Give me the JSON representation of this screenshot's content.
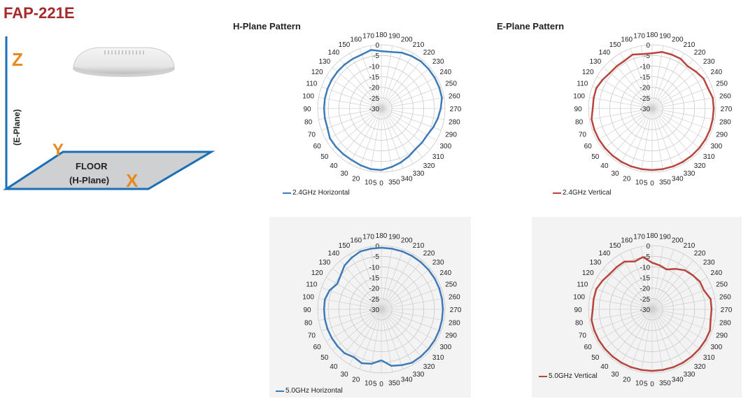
{
  "title": "FAP-221E",
  "diagram": {
    "axis_z": "Z",
    "axis_y": "Y",
    "axis_x": "X",
    "eplane_label": "(E-Plane)",
    "floor_label": "FLOOR",
    "hplane_label": "(H-Plane)"
  },
  "headings": {
    "h_plane": "H-Plane Pattern",
    "e_plane": "E-Plane Pattern"
  },
  "chart_data": [
    {
      "type": "polar-line",
      "angle_labels": [
        "0",
        "5",
        "10",
        "20",
        "30",
        "40",
        "50",
        "60",
        "70",
        "80",
        "90",
        "100",
        "110",
        "120",
        "130",
        "140",
        "150",
        "160",
        "170",
        "180",
        "190",
        "200",
        "210",
        "220",
        "230",
        "240",
        "250",
        "260",
        "270",
        "280",
        "290",
        "300",
        "310",
        "320",
        "330",
        "340",
        "350"
      ],
      "radial_labels": [
        "0",
        "-5",
        "-10",
        "-15",
        "-20",
        "-25",
        "-30"
      ],
      "rlim": [
        -30,
        0
      ],
      "series": [
        {
          "name": "2.4GHz Horizontal",
          "color": "#3d7ab8",
          "angles": [
            0,
            10,
            20,
            30,
            40,
            50,
            60,
            70,
            80,
            90,
            100,
            110,
            120,
            130,
            140,
            150,
            160,
            170,
            180,
            190,
            200,
            210,
            220,
            230,
            240,
            250,
            260,
            270,
            280,
            290,
            300,
            310,
            320,
            330,
            340,
            350
          ],
          "values": [
            -1,
            -1,
            -1.5,
            -2,
            -2,
            -2,
            -2,
            -3,
            -3,
            -3,
            -3,
            -3,
            -3,
            -3,
            -3,
            -3,
            -3,
            -2,
            -3,
            -3,
            -2,
            -1.5,
            -1,
            -1,
            -1,
            -1,
            -1,
            -2,
            -3,
            -4,
            -5,
            -5,
            -5,
            -4,
            -3,
            -2
          ]
        }
      ]
    },
    {
      "type": "polar-line",
      "angle_labels": [
        "0",
        "5",
        "10",
        "20",
        "30",
        "40",
        "50",
        "60",
        "70",
        "80",
        "90",
        "100",
        "110",
        "120",
        "130",
        "140",
        "150",
        "160",
        "170",
        "180",
        "190",
        "200",
        "210",
        "220",
        "230",
        "240",
        "250",
        "260",
        "270",
        "280",
        "290",
        "300",
        "310",
        "320",
        "330",
        "340",
        "350"
      ],
      "radial_labels": [
        "0",
        "-5",
        "-10",
        "-15",
        "-20",
        "-25",
        "-30"
      ],
      "rlim": [
        -30,
        0
      ],
      "series": [
        {
          "name": "2.4GHz Vertical",
          "color": "#b7443d",
          "angles": [
            0,
            10,
            20,
            30,
            40,
            50,
            60,
            70,
            80,
            90,
            100,
            110,
            120,
            130,
            140,
            150,
            160,
            170,
            180,
            190,
            200,
            210,
            220,
            230,
            240,
            250,
            260,
            270,
            280,
            290,
            300,
            310,
            320,
            330,
            340,
            350
          ],
          "values": [
            -1,
            -1,
            -1,
            -1,
            -1,
            -1,
            -1,
            -1,
            -1,
            -2,
            -2,
            -2,
            -3,
            -4,
            -4,
            -4,
            -3,
            -4,
            -4,
            -3,
            -3,
            -3,
            -4,
            -3,
            -2,
            -2,
            -1,
            -1,
            -1,
            -1,
            -1,
            -1,
            -1,
            -1,
            -1,
            -1
          ]
        }
      ]
    },
    {
      "type": "polar-line",
      "angle_labels": [
        "0",
        "5",
        "10",
        "20",
        "30",
        "40",
        "50",
        "60",
        "70",
        "80",
        "90",
        "100",
        "110",
        "120",
        "130",
        "140",
        "150",
        "160",
        "170",
        "180",
        "190",
        "200",
        "210",
        "220",
        "230",
        "240",
        "250",
        "260",
        "270",
        "280",
        "290",
        "300",
        "310",
        "320",
        "330",
        "340",
        "350"
      ],
      "radial_labels": [
        "0",
        "-5",
        "-10",
        "-15",
        "-20",
        "-25",
        "-30"
      ],
      "rlim": [
        -30,
        0
      ],
      "series": [
        {
          "name": "5.0GHz Horizontal",
          "color": "#3d7ab8",
          "angles": [
            0,
            10,
            20,
            30,
            40,
            50,
            60,
            70,
            80,
            90,
            100,
            110,
            120,
            130,
            140,
            150,
            160,
            170,
            180,
            190,
            200,
            210,
            220,
            230,
            240,
            250,
            260,
            270,
            280,
            290,
            300,
            310,
            320,
            330,
            340,
            350
          ],
          "values": [
            -6,
            -4,
            -3,
            -4,
            -3,
            -3,
            -3,
            -3,
            -3,
            -3,
            -3,
            -4,
            -6,
            -5,
            -3,
            -2,
            -1,
            -1,
            -1,
            -1,
            -1,
            -1,
            -1,
            -1,
            -1,
            -1,
            -1,
            -1,
            -1,
            -1,
            -1,
            -1,
            -1,
            -1,
            -2,
            -3
          ]
        }
      ]
    },
    {
      "type": "polar-line",
      "angle_labels": [
        "0",
        "5",
        "10",
        "20",
        "30",
        "40",
        "50",
        "60",
        "70",
        "80",
        "90",
        "100",
        "110",
        "120",
        "130",
        "140",
        "150",
        "160",
        "170",
        "180",
        "190",
        "200",
        "210",
        "220",
        "230",
        "240",
        "250",
        "260",
        "270",
        "280",
        "290",
        "300",
        "310",
        "320",
        "330",
        "340",
        "350"
      ],
      "radial_labels": [
        "0",
        "-5",
        "-10",
        "-15",
        "-20",
        "-25",
        "-30"
      ],
      "rlim": [
        -30,
        0
      ],
      "series": [
        {
          "name": "5.0GHz Vertical",
          "color": "#b7443d",
          "angles": [
            0,
            10,
            20,
            30,
            40,
            50,
            60,
            70,
            80,
            90,
            100,
            110,
            120,
            130,
            140,
            150,
            160,
            170,
            180,
            190,
            200,
            210,
            220,
            230,
            240,
            250,
            260,
            270,
            280,
            290,
            300,
            310,
            320,
            330,
            340,
            350
          ],
          "values": [
            -1,
            -1,
            -1,
            -1,
            -1,
            -1,
            -1,
            -1,
            -1,
            -2,
            -2,
            -2,
            -3,
            -4,
            -4,
            -4,
            -6,
            -5,
            -8,
            -9,
            -10,
            -8,
            -6,
            -5,
            -4,
            -4,
            -2,
            -2,
            -2,
            -1,
            -1,
            -1,
            -1,
            -1,
            -1,
            -1
          ]
        }
      ]
    }
  ]
}
